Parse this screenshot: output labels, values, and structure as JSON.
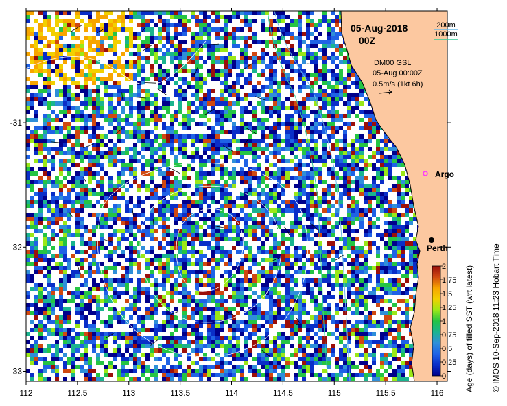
{
  "title": {
    "date": "05-Aug-2018",
    "time": "00Z"
  },
  "depth_legend": {
    "line1": {
      "label": "200m",
      "color": "#6ab8e8"
    },
    "line2": {
      "label": "1000m",
      "color": "#33cc99"
    }
  },
  "current_info": {
    "line1": "DM00 GSL",
    "line2": "05-Aug 00:00Z",
    "line3": "0.5m/s (1kt 6h)"
  },
  "places": {
    "argo": {
      "label": "Argo",
      "marker_color": "#ff33ff",
      "lon": 115.85,
      "lat": -31.45
    },
    "perth": {
      "label": "Perth",
      "marker_color": "#000000",
      "lon": 115.86,
      "lat": -31.95
    }
  },
  "x_axis": {
    "range": [
      112,
      116.1
    ],
    "ticks": [
      "112",
      "112.5",
      "113",
      "113.5",
      "114",
      "114.5",
      "115",
      "115.5",
      "116"
    ]
  },
  "y_axis": {
    "range": [
      -33.08,
      -30.1
    ],
    "ticks": [
      "-31",
      "-32",
      "-33"
    ]
  },
  "colorbar": {
    "title": "Age (days) of filled SST (wrt latest)",
    "range": [
      0,
      2
    ],
    "ticks": [
      "2",
      "1.75",
      "1.5",
      "1.25",
      "1",
      "0.75",
      "0.5",
      "0.25",
      "0"
    ],
    "colors": [
      "#00008b",
      "#0a2ec8",
      "#1f62e6",
      "#2f8fd9",
      "#1ab48f",
      "#25c444",
      "#9be817",
      "#f2d000",
      "#f7a500",
      "#d04810",
      "#9b0f0a"
    ]
  },
  "credit": "© IMOS 10-Sep-2018 11:23 Hobart Time",
  "colors": {
    "land": "#fcc8a0",
    "no_data": "#ffffff",
    "coast": "#000000"
  }
}
